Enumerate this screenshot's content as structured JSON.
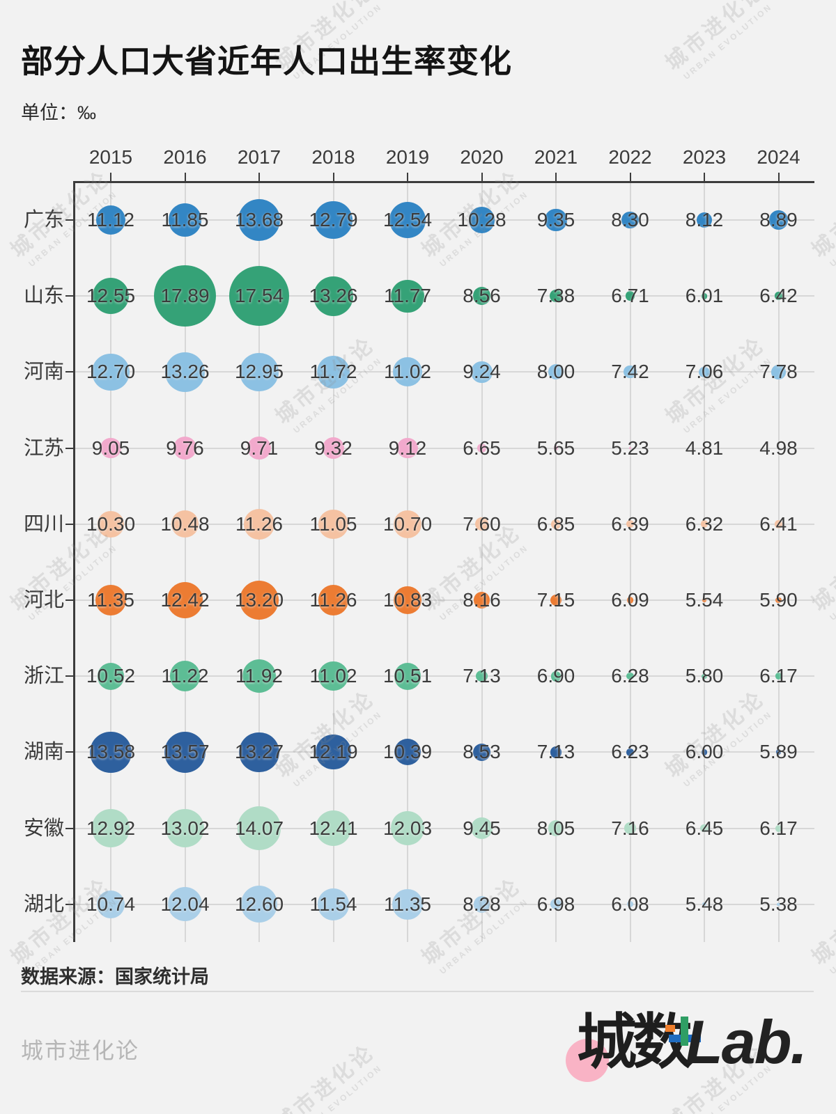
{
  "title": "部分人口大省近年人口出生率变化",
  "unit_label": "单位：‰",
  "source_label": "数据来源：国家统计局",
  "footer_brand": "城市进化论",
  "logo": {
    "cn": "城数",
    "latin": "Lab."
  },
  "watermark": {
    "cn": "城市进化论",
    "en": "URBAN EVOLUTION"
  },
  "colors": {
    "background": "#f2f2f2",
    "axis": "#3c3c3c",
    "grid": "#d7d7d7",
    "value_text": "#3b3b3b",
    "logo_pink": "#f9b3c5"
  },
  "chart_data": {
    "type": "bubble",
    "title": "部分人口大省近年人口出生率变化",
    "unit": "‰",
    "x": [
      "2015",
      "2016",
      "2017",
      "2018",
      "2019",
      "2020",
      "2021",
      "2022",
      "2023",
      "2024"
    ],
    "rows": [
      {
        "province": "广东",
        "color": "#3386c4",
        "values": [
          "11.12",
          "11.85",
          "13.68",
          "12.79",
          "12.54",
          "10.28",
          "9.35",
          "8.30",
          "8.12",
          "8.89"
        ]
      },
      {
        "province": "山东",
        "color": "#35a277",
        "values": [
          "12.55",
          "17.89",
          "17.54",
          "13.26",
          "11.77",
          "8.56",
          "7.38",
          "6.71",
          "6.01",
          "6.42"
        ]
      },
      {
        "province": "河南",
        "color": "#8cc1e3",
        "values": [
          "12.70",
          "13.26",
          "12.95",
          "11.72",
          "11.02",
          "9.24",
          "8.00",
          "7.42",
          "7.06",
          "7.78"
        ]
      },
      {
        "province": "江苏",
        "color": "#f2a9cc",
        "values": [
          "9.05",
          "9.76",
          "9.71",
          "9.32",
          "9.12",
          "6.65",
          "5.65",
          "5.23",
          "4.81",
          "4.98"
        ]
      },
      {
        "province": "四川",
        "color": "#f5c2a2",
        "values": [
          "10.30",
          "10.48",
          "11.26",
          "11.05",
          "10.70",
          "7.60",
          "6.85",
          "6.39",
          "6.32",
          "6.41"
        ]
      },
      {
        "province": "河北",
        "color": "#ec7c33",
        "values": [
          "11.35",
          "12.42",
          "13.20",
          "11.26",
          "10.83",
          "8.16",
          "7.15",
          "6.09",
          "5.54",
          "5.90"
        ]
      },
      {
        "province": "浙江",
        "color": "#5dbd95",
        "values": [
          "10.52",
          "11.22",
          "11.92",
          "11.02",
          "10.51",
          "7.13",
          "6.90",
          "6.28",
          "5.80",
          "6.17"
        ]
      },
      {
        "province": "湖南",
        "color": "#2e609e",
        "values": [
          "13.58",
          "13.57",
          "13.27",
          "12.19",
          "10.39",
          "8.53",
          "7.13",
          "6.23",
          "6.00",
          "5.89"
        ]
      },
      {
        "province": "安徽",
        "color": "#b0dcc6",
        "values": [
          "12.92",
          "13.02",
          "14.07",
          "12.41",
          "12.03",
          "9.45",
          "8.05",
          "7.16",
          "6.45",
          "6.17"
        ]
      },
      {
        "province": "湖北",
        "color": "#aacfe8",
        "values": [
          "10.74",
          "12.04",
          "12.60",
          "11.54",
          "11.35",
          "8.28",
          "6.98",
          "6.08",
          "5.48",
          "5.38"
        ]
      }
    ]
  }
}
